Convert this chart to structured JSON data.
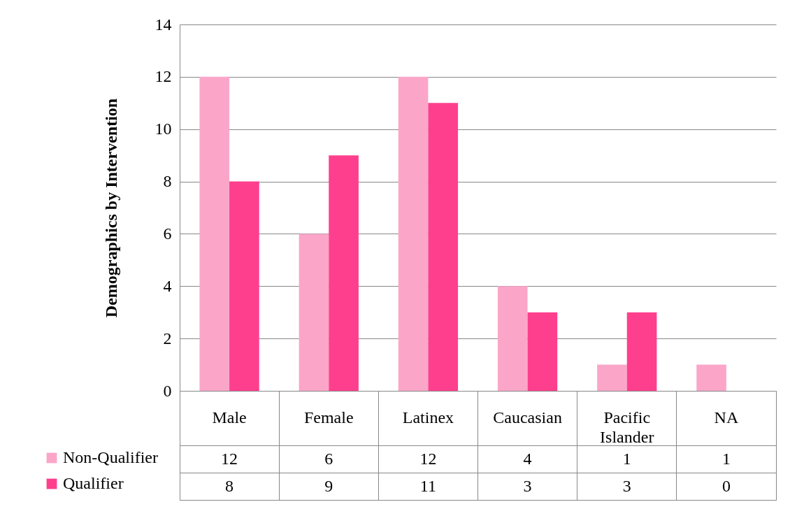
{
  "chart_data": {
    "type": "bar",
    "ylabel": "Demographics by Intervention",
    "categories": [
      "Male",
      "Female",
      "Latinex",
      "Caucasian",
      "Pacific Islander",
      "NA"
    ],
    "series": [
      {
        "name": "Non-Qualifier",
        "color": "#fba6c9",
        "values": [
          12,
          6,
          12,
          4,
          1,
          1
        ]
      },
      {
        "name": "Qualifier",
        "color": "#fe3f8d",
        "values": [
          8,
          9,
          11,
          3,
          3,
          0
        ]
      }
    ],
    "ylim": [
      0,
      14
    ],
    "yticks": [
      0,
      2,
      4,
      6,
      8,
      10,
      12,
      14
    ],
    "grid": "y",
    "legend": "bottom left",
    "data_labels": true
  }
}
